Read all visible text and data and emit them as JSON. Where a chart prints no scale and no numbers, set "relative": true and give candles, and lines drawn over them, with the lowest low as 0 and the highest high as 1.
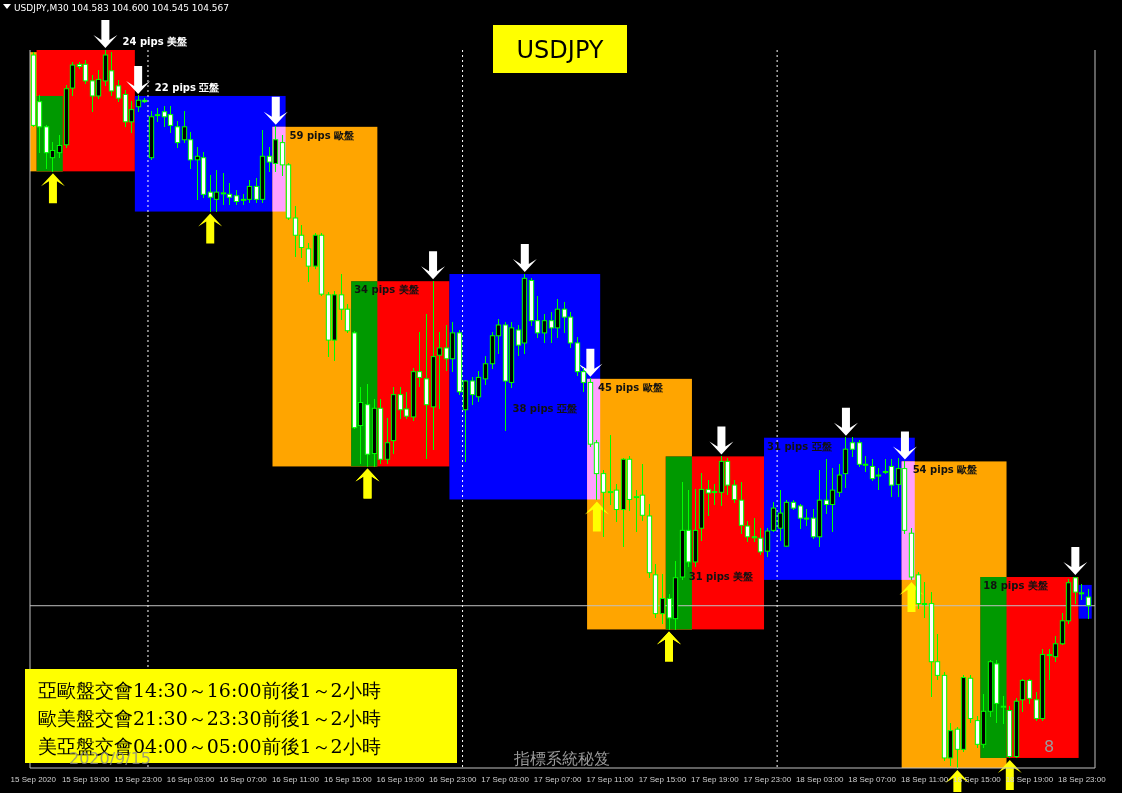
{
  "chart_data": {
    "type": "candlestick",
    "title": "USDJPY",
    "relative": true,
    "color": "#00ff00",
    "tick_labels": "x",
    "annotations": [
      "USDJPY,M30  104.583 104.600 104.545 104.567",
      "亞歐盤交會14:30～16:00前後1～2小時",
      "歐美盤交會21:30～23:30前後1～2小時",
      "美亞盤交會04:00～05:00前後1～2小時",
      "2020/9/15",
      "指標系統秘笈",
      "8"
    ],
    "x": [
      "2020-09-15T15:00",
      "2020-09-15T15:30",
      "2020-09-15T16:00",
      "2020-09-15T16:30",
      "2020-09-15T17:00",
      "2020-09-15T17:30",
      "2020-09-15T18:00",
      "2020-09-15T18:30",
      "2020-09-15T19:00",
      "2020-09-15T19:30",
      "2020-09-15T20:00",
      "2020-09-15T20:30",
      "2020-09-15T21:00",
      "2020-09-15T21:30",
      "2020-09-15T22:00",
      "2020-09-15T22:30",
      "2020-09-15T23:00",
      "2020-09-15T23:30",
      "2020-09-16T00:00",
      "2020-09-16T00:30",
      "2020-09-16T01:00",
      "2020-09-16T01:30",
      "2020-09-16T02:00",
      "2020-09-16T02:30",
      "2020-09-16T03:00",
      "2020-09-16T03:30",
      "2020-09-16T04:00",
      "2020-09-16T04:30",
      "2020-09-16T05:00",
      "2020-09-16T05:30",
      "2020-09-16T06:00",
      "2020-09-16T06:30",
      "2020-09-16T07:00",
      "2020-09-16T07:30",
      "2020-09-16T08:00",
      "2020-09-16T08:30",
      "2020-09-16T09:00",
      "2020-09-16T09:30",
      "2020-09-16T10:00",
      "2020-09-16T10:30",
      "2020-09-16T11:00",
      "2020-09-16T11:30",
      "2020-09-16T12:00",
      "2020-09-16T12:30",
      "2020-09-16T13:00",
      "2020-09-16T13:30",
      "2020-09-16T14:00",
      "2020-09-16T14:30",
      "2020-09-16T15:00",
      "2020-09-16T15:30",
      "2020-09-16T16:00",
      "2020-09-16T16:30",
      "2020-09-16T17:00",
      "2020-09-16T17:30",
      "2020-09-16T18:00",
      "2020-09-16T18:30",
      "2020-09-16T19:00",
      "2020-09-16T19:30",
      "2020-09-16T20:00",
      "2020-09-16T20:30",
      "2020-09-16T21:00",
      "2020-09-16T21:30",
      "2020-09-16T22:00",
      "2020-09-16T22:30",
      "2020-09-16T23:00",
      "2020-09-16T23:30",
      "2020-09-17T00:00",
      "2020-09-17T00:30",
      "2020-09-17T01:00",
      "2020-09-17T01:30",
      "2020-09-17T02:00",
      "2020-09-17T02:30",
      "2020-09-17T03:00",
      "2020-09-17T03:30",
      "2020-09-17T04:00",
      "2020-09-17T04:30",
      "2020-09-17T05:00",
      "2020-09-17T05:30",
      "2020-09-17T06:00",
      "2020-09-17T06:30",
      "2020-09-17T07:00",
      "2020-09-17T07:30",
      "2020-09-17T08:00",
      "2020-09-17T08:30",
      "2020-09-17T09:00",
      "2020-09-17T09:30",
      "2020-09-17T10:00",
      "2020-09-17T10:30",
      "2020-09-17T11:00",
      "2020-09-17T11:30",
      "2020-09-17T12:00",
      "2020-09-17T12:30",
      "2020-09-17T13:00",
      "2020-09-17T13:30",
      "2020-09-17T14:00",
      "2020-09-17T14:30",
      "2020-09-17T15:00",
      "2020-09-17T15:30",
      "2020-09-17T16:00",
      "2020-09-17T16:30",
      "2020-09-17T17:00",
      "2020-09-17T17:30",
      "2020-09-17T18:00",
      "2020-09-17T18:30",
      "2020-09-17T19:00",
      "2020-09-17T19:30",
      "2020-09-17T20:00",
      "2020-09-17T20:30",
      "2020-09-17T21:00",
      "2020-09-17T21:30",
      "2020-09-17T22:00",
      "2020-09-17T22:30",
      "2020-09-17T23:00",
      "2020-09-17T23:30",
      "2020-09-18T00:00",
      "2020-09-18T00:30",
      "2020-09-18T01:00",
      "2020-09-18T01:30",
      "2020-09-18T02:00",
      "2020-09-18T02:30",
      "2020-09-18T03:00",
      "2020-09-18T03:30",
      "2020-09-18T04:00",
      "2020-09-18T04:30",
      "2020-09-18T05:00",
      "2020-09-18T05:30",
      "2020-09-18T06:00",
      "2020-09-18T06:30",
      "2020-09-18T07:00",
      "2020-09-18T07:30",
      "2020-09-18T08:00",
      "2020-09-18T08:30",
      "2020-09-18T09:00",
      "2020-09-18T09:30",
      "2020-09-18T10:00",
      "2020-09-18T10:30",
      "2020-09-18T11:00",
      "2020-09-18T11:30",
      "2020-09-18T12:00",
      "2020-09-18T12:30",
      "2020-09-18T13:00",
      "2020-09-18T13:30",
      "2020-09-18T14:00",
      "2020-09-18T14:30",
      "2020-09-18T15:00",
      "2020-09-18T15:30",
      "2020-09-18T16:00",
      "2020-09-18T16:30",
      "2020-09-18T17:00",
      "2020-09-18T17:30",
      "2020-09-18T18:00",
      "2020-09-18T18:30",
      "2020-09-18T19:00",
      "2020-09-18T19:30",
      "2020-09-18T20:00",
      "2020-09-18T20:30",
      "2020-09-18T21:00",
      "2020-09-18T21:30",
      "2020-09-18T22:00",
      "2020-09-18T22:30",
      "2020-09-18T23:00",
      "2020-09-18T23:30"
    ],
    "ohlc": [
      [
        0.993,
        0.997,
        0.893,
        0.895
      ],
      [
        0.928,
        0.936,
        0.857,
        0.893
      ],
      [
        0.893,
        0.895,
        0.835,
        0.857
      ],
      [
        0.85,
        0.871,
        0.831,
        0.86
      ],
      [
        0.857,
        0.881,
        0.85,
        0.867
      ],
      [
        0.868,
        0.95,
        0.864,
        0.946
      ],
      [
        0.947,
        0.983,
        0.936,
        0.979
      ],
      [
        0.98,
        0.983,
        0.974,
        0.977
      ],
      [
        0.98,
        0.986,
        0.953,
        0.957
      ],
      [
        0.957,
        0.964,
        0.914,
        0.936
      ],
      [
        0.936,
        0.971,
        0.933,
        0.959
      ],
      [
        0.957,
        1,
        0.95,
        0.993
      ],
      [
        0.971,
        0.996,
        0.936,
        0.943
      ],
      [
        0.95,
        0.957,
        0.928,
        0.933
      ],
      [
        0.938,
        0.943,
        0.893,
        0.9
      ],
      [
        0.9,
        0.928,
        0.885,
        0.917
      ],
      [
        0.921,
        0.936,
        0.915,
        0.93
      ],
      [
        0.93,
        0.933,
        0.927,
        0.928
      ],
      [
        0.85,
        0.914,
        0.847,
        0.907
      ],
      [
        0.91,
        0.918,
        0.9,
        0.91
      ],
      [
        0.914,
        0.921,
        0.893,
        0.907
      ],
      [
        0.91,
        0.921,
        0.885,
        0.895
      ],
      [
        0.893,
        0.9,
        0.864,
        0.871
      ],
      [
        0.875,
        0.914,
        0.871,
        0.893
      ],
      [
        0.875,
        0.885,
        0.835,
        0.847
      ],
      [
        0.847,
        0.864,
        0.792,
        0.852
      ],
      [
        0.85,
        0.857,
        0.795,
        0.799
      ],
      [
        0.802,
        0.825,
        0.775,
        0.795
      ],
      [
        0.792,
        0.832,
        0.775,
        0.802
      ],
      [
        0.801,
        0.828,
        0.785,
        0.801
      ],
      [
        0.799,
        0.814,
        0.785,
        0.795
      ],
      [
        0.797,
        0.804,
        0.785,
        0.789
      ],
      [
        0.791,
        0.799,
        0.785,
        0.792
      ],
      [
        0.792,
        0.818,
        0.788,
        0.81
      ],
      [
        0.81,
        0.821,
        0.788,
        0.792
      ],
      [
        0.792,
        0.888,
        0.788,
        0.852
      ],
      [
        0.852,
        0.864,
        0.831,
        0.844
      ],
      [
        0.842,
        0.893,
        0.831,
        0.875
      ],
      [
        0.871,
        0.881,
        0.825,
        0.84
      ],
      [
        0.84,
        0.842,
        0.764,
        0.766
      ],
      [
        0.766,
        0.782,
        0.713,
        0.742
      ],
      [
        0.742,
        0.756,
        0.711,
        0.725
      ],
      [
        0.723,
        0.731,
        0.678,
        0.699
      ],
      [
        0.699,
        0.745,
        0.696,
        0.742
      ],
      [
        0.742,
        0.745,
        0.658,
        0.66
      ],
      [
        0.659,
        0.662,
        0.573,
        0.596
      ],
      [
        0.596,
        0.663,
        0.567,
        0.659
      ],
      [
        0.659,
        0.688,
        0.625,
        0.639
      ],
      [
        0.639,
        0.645,
        0.606,
        0.609
      ],
      [
        0.606,
        0.608,
        0.473,
        0.474
      ],
      [
        0.477,
        0.53,
        0.424,
        0.509
      ],
      [
        0.506,
        0.534,
        0.42,
        0.437
      ],
      [
        0.438,
        0.513,
        0.42,
        0.501
      ],
      [
        0.501,
        0.513,
        0.424,
        0.43
      ],
      [
        0.43,
        0.487,
        0.424,
        0.453
      ],
      [
        0.456,
        0.53,
        0.438,
        0.52
      ],
      [
        0.52,
        0.53,
        0.487,
        0.499
      ],
      [
        0.5,
        0.523,
        0.487,
        0.49
      ],
      [
        0.489,
        0.556,
        0.484,
        0.552
      ],
      [
        0.552,
        0.606,
        0.532,
        0.544
      ],
      [
        0.542,
        0.632,
        0.431,
        0.506
      ],
      [
        0.503,
        0.678,
        0.444,
        0.573
      ],
      [
        0.575,
        0.606,
        0.501,
        0.585
      ],
      [
        0.585,
        0.616,
        0.553,
        0.57
      ],
      [
        0.57,
        0.62,
        0.552,
        0.606
      ],
      [
        0.606,
        0.61,
        0.52,
        0.524
      ],
      [
        0.499,
        0.539,
        0.427,
        0.539
      ],
      [
        0.539,
        0.544,
        0.506,
        0.52
      ],
      [
        0.517,
        0.552,
        0.51,
        0.544
      ],
      [
        0.542,
        0.573,
        0.534,
        0.563
      ],
      [
        0.563,
        0.606,
        0.556,
        0.602
      ],
      [
        0.602,
        0.625,
        0.577,
        0.617
      ],
      [
        0.617,
        0.62,
        0.47,
        0.539
      ],
      [
        0.537,
        0.62,
        0.53,
        0.613
      ],
      [
        0.61,
        0.616,
        0.575,
        0.589
      ],
      [
        0.592,
        0.688,
        0.577,
        0.682
      ],
      [
        0.679,
        0.682,
        0.616,
        0.623
      ],
      [
        0.623,
        0.656,
        0.599,
        0.606
      ],
      [
        0.606,
        0.632,
        0.592,
        0.623
      ],
      [
        0.623,
        0.635,
        0.592,
        0.613
      ],
      [
        0.613,
        0.652,
        0.599,
        0.639
      ],
      [
        0.639,
        0.649,
        0.606,
        0.628
      ],
      [
        0.628,
        0.635,
        0.585,
        0.592
      ],
      [
        0.592,
        0.599,
        0.546,
        0.552
      ],
      [
        0.552,
        0.556,
        0.524,
        0.537
      ],
      [
        0.537,
        0.542,
        0.448,
        0.451
      ],
      [
        0.453,
        0.456,
        0.374,
        0.41
      ],
      [
        0.41,
        0.415,
        0.322,
        0.384
      ],
      [
        0.385,
        0.463,
        0.367,
        0.384
      ],
      [
        0.387,
        0.395,
        0.344,
        0.36
      ],
      [
        0.36,
        0.431,
        0.309,
        0.43
      ],
      [
        0.43,
        0.434,
        0.358,
        0.374
      ],
      [
        0.378,
        0.387,
        0.33,
        0.377
      ],
      [
        0.38,
        0.423,
        0.345,
        0.352
      ],
      [
        0.351,
        0.367,
        0.266,
        0.272
      ],
      [
        0.269,
        0.284,
        0.209,
        0.215
      ],
      [
        0.215,
        0.269,
        0.201,
        0.236
      ],
      [
        0.236,
        0.241,
        0.193,
        0.209
      ],
      [
        0.208,
        0.287,
        0.193,
        0.265
      ],
      [
        0.266,
        0.398,
        0.262,
        0.331
      ],
      [
        0.331,
        0.387,
        0.281,
        0.287
      ],
      [
        0.287,
        0.388,
        0.281,
        0.331
      ],
      [
        0.334,
        0.41,
        0.317,
        0.388
      ],
      [
        0.388,
        0.401,
        0.352,
        0.383
      ],
      [
        0.385,
        0.395,
        0.367,
        0.385
      ],
      [
        0.384,
        0.434,
        0.365,
        0.427
      ],
      [
        0.427,
        0.431,
        0.381,
        0.394
      ],
      [
        0.394,
        0.401,
        0.37,
        0.374
      ],
      [
        0.373,
        0.398,
        0.327,
        0.338
      ],
      [
        0.337,
        0.344,
        0.315,
        0.322
      ],
      [
        0.322,
        0.348,
        0.315,
        0.321
      ],
      [
        0.32,
        0.334,
        0.298,
        0.301
      ],
      [
        0.302,
        0.334,
        0.295,
        0.33
      ],
      [
        0.331,
        0.37,
        0.33,
        0.362
      ],
      [
        0.334,
        0.387,
        0.317,
        0.355
      ],
      [
        0.309,
        0.373,
        0.309,
        0.37
      ],
      [
        0.37,
        0.373,
        0.36,
        0.362
      ],
      [
        0.365,
        0.367,
        0.334,
        0.348
      ],
      [
        0.348,
        0.36,
        0.338,
        0.348
      ],
      [
        0.348,
        0.36,
        0.32,
        0.322
      ],
      [
        0.322,
        0.415,
        0.308,
        0.373
      ],
      [
        0.373,
        0.43,
        0.355,
        0.367
      ],
      [
        0.367,
        0.417,
        0.33,
        0.387
      ],
      [
        0.384,
        0.423,
        0.378,
        0.408
      ],
      [
        0.41,
        0.46,
        0.391,
        0.444
      ],
      [
        0.453,
        0.46,
        0.434,
        0.444
      ],
      [
        0.453,
        0.456,
        0.42,
        0.423
      ],
      [
        0.423,
        0.434,
        0.413,
        0.423
      ],
      [
        0.42,
        0.43,
        0.401,
        0.403
      ],
      [
        0.408,
        0.417,
        0.388,
        0.408
      ],
      [
        0.413,
        0.43,
        0.41,
        0.413
      ],
      [
        0.42,
        0.43,
        0.378,
        0.394
      ],
      [
        0.395,
        0.431,
        0.378,
        0.417
      ],
      [
        0.417,
        0.427,
        0.327,
        0.331
      ],
      [
        0.327,
        0.334,
        0.262,
        0.266
      ],
      [
        0.269,
        0.272,
        0.222,
        0.229
      ],
      [
        0.229,
        0.258,
        0.209,
        0.229
      ],
      [
        0.229,
        0.245,
        0.1,
        0.148
      ],
      [
        0.148,
        0.186,
        0.123,
        0.129
      ],
      [
        0.129,
        0.133,
        0.011,
        0.014
      ],
      [
        0.014,
        0.062,
        0.004,
        0.052
      ],
      [
        0.054,
        0.057,
        0,
        0.026
      ],
      [
        0.026,
        0.129,
        0.023,
        0.126
      ],
      [
        0.125,
        0.129,
        0.064,
        0.069
      ],
      [
        0.066,
        0.072,
        0.029,
        0.033
      ],
      [
        0.033,
        0.102,
        0.029,
        0.079
      ],
      [
        0.079,
        0.15,
        0.072,
        0.148
      ],
      [
        0.145,
        0.15,
        0.064,
        0.09
      ],
      [
        0.086,
        0.1,
        0.062,
        0.086
      ],
      [
        0.08,
        0.086,
        0.014,
        0.016
      ],
      [
        0.016,
        0.097,
        0.014,
        0.093
      ],
      [
        0.095,
        0.123,
        0.079,
        0.122
      ],
      [
        0.122,
        0.123,
        0.09,
        0.097
      ],
      [
        0.095,
        0.105,
        0.066,
        0.069
      ],
      [
        0.069,
        0.165,
        0.066,
        0.158
      ],
      [
        0.158,
        0.165,
        0.123,
        0.158
      ],
      [
        0.155,
        0.183,
        0.148,
        0.173
      ],
      [
        0.173,
        0.215,
        0.172,
        0.205
      ],
      [
        0.205,
        0.262,
        0.201,
        0.258
      ],
      [
        0.265,
        0.266,
        0.229,
        0.245
      ],
      [
        0.244,
        0.255,
        0.234,
        0.244
      ],
      [
        0.238,
        0.248,
        0.208,
        0.226
      ]
    ],
    "xlim": [
      "2020-09-15T14:45",
      "2020-09-19T00:00"
    ],
    "xticks": [
      {
        "value": "2020-09-15T15:00",
        "label": "15 Sep 2020"
      },
      {
        "value": "2020-09-15T19:00",
        "label": "15 Sep 19:00"
      },
      {
        "value": "2020-09-15T23:00",
        "label": "15 Sep 23:00"
      },
      {
        "value": "2020-09-16T03:00",
        "label": "16 Sep 03:00"
      },
      {
        "value": "2020-09-16T07:00",
        "label": "16 Sep 07:00"
      },
      {
        "value": "2020-09-16T11:00",
        "label": "16 Sep 11:00"
      },
      {
        "value": "2020-09-16T15:00",
        "label": "16 Sep 15:00"
      },
      {
        "value": "2020-09-16T19:00",
        "label": "16 Sep 19:00"
      },
      {
        "value": "2020-09-16T23:00",
        "label": "16 Sep 23:00"
      },
      {
        "value": "2020-09-17T03:00",
        "label": "17 Sep 03:00"
      },
      {
        "value": "2020-09-17T07:00",
        "label": "17 Sep 07:00"
      },
      {
        "value": "2020-09-17T11:00",
        "label": "17 Sep 11:00"
      },
      {
        "value": "2020-09-17T15:00",
        "label": "17 Sep 15:00"
      },
      {
        "value": "2020-09-17T19:00",
        "label": "17 Sep 19:00"
      },
      {
        "value": "2020-09-17T23:00",
        "label": "17 Sep 23:00"
      },
      {
        "value": "2020-09-18T03:00",
        "label": "18 Sep 03:00"
      },
      {
        "value": "2020-09-18T07:00",
        "label": "18 Sep 07:00"
      },
      {
        "value": "2020-09-18T11:00",
        "label": "18 Sep 11:00"
      },
      {
        "value": "2020-09-18T15:00",
        "label": "18 Sep 15:00"
      },
      {
        "value": "2020-09-18T19:00",
        "label": "18 Sep 19:00"
      },
      {
        "value": "2020-09-18T23:00",
        "label": "18 Sep 23:00"
      }
    ],
    "ref_lines": [
      {
        "axis": "y",
        "value": 0.226,
        "color": "#c0c0c0",
        "line_style": "solid"
      },
      {
        "axis": "x",
        "value": "2020-09-16T00:00",
        "color": "#ffffff",
        "line_style": "dotted"
      },
      {
        "axis": "x",
        "value": "2020-09-17T00:00",
        "color": "#ffffff",
        "line_style": "dotted"
      },
      {
        "axis": "x",
        "value": "2020-09-18T00:00",
        "color": "#ffffff",
        "line_style": "dotted"
      }
    ],
    "bands": [
      {
        "axis": "x",
        "from": "2020-09-15T14:45",
        "to": "2020-09-15T17:30",
        "color": "#ffa500"
      },
      {
        "axis": "x",
        "from": "2020-09-15T15:30",
        "to": "2020-09-15T23:00",
        "label": "24 pips 美盤",
        "color": "#ff0000"
      },
      {
        "axis": "x",
        "from": "2020-09-15T23:00",
        "to": "2020-09-16T10:30",
        "label": "22 pips 亞盤",
        "color": "#0000ff"
      },
      {
        "axis": "x",
        "from": "2020-09-16T09:30",
        "to": "2020-09-16T17:30",
        "label": "59 pips 歐盤",
        "color": "#ffa500"
      },
      {
        "axis": "x",
        "from": "2020-09-16T15:30",
        "to": "2020-09-16T23:00",
        "label": "34 pips 美盤",
        "color": "#ff0000"
      },
      {
        "axis": "x",
        "from": "2020-09-16T23:00",
        "to": "2020-09-17T10:30",
        "label": "38 pips 亞盤",
        "color": "#0000ff"
      },
      {
        "axis": "x",
        "from": "2020-09-17T09:30",
        "to": "2020-09-17T17:30",
        "label": "45 pips 歐盤",
        "color": "#ffa500"
      },
      {
        "axis": "x",
        "from": "2020-09-17T15:30",
        "to": "2020-09-17T23:00",
        "label": "31 pips 美盤",
        "color": "#ff0000"
      },
      {
        "axis": "x",
        "from": "2020-09-17T23:00",
        "to": "2020-09-18T10:30",
        "label": "31 pips 亞盤",
        "color": "#0000ff"
      },
      {
        "axis": "x",
        "from": "2020-09-18T09:30",
        "to": "2020-09-18T17:30",
        "label": "54 pips 歐盤",
        "color": "#ffa500"
      },
      {
        "axis": "x",
        "from": "2020-09-18T15:30",
        "to": "2020-09-18T23:00",
        "label": "18 pips 美盤",
        "color": "#ff0000"
      },
      {
        "axis": "x",
        "from": "2020-09-18T23:00",
        "to": "2020-09-19T00:00",
        "color": "#0000ff"
      },
      {
        "axis": "x",
        "from": "2020-09-15T15:30",
        "to": "2020-09-15T17:30",
        "color": "#009900"
      },
      {
        "axis": "x",
        "from": "2020-09-16T09:30",
        "to": "2020-09-16T10:30",
        "color": "#ffa0ff"
      },
      {
        "axis": "x",
        "from": "2020-09-16T15:30",
        "to": "2020-09-16T17:30",
        "color": "#009900"
      },
      {
        "axis": "x",
        "from": "2020-09-17T09:30",
        "to": "2020-09-17T10:30",
        "color": "#ffa0ff"
      },
      {
        "axis": "x",
        "from": "2020-09-17T15:30",
        "to": "2020-09-17T17:30",
        "color": "#009900"
      },
      {
        "axis": "x",
        "from": "2020-09-18T09:30",
        "to": "2020-09-18T10:30",
        "color": "#ffa0ff"
      },
      {
        "axis": "x",
        "from": "2020-09-18T15:30",
        "to": "2020-09-18T17:30",
        "color": "#009900"
      }
    ]
  }
}
